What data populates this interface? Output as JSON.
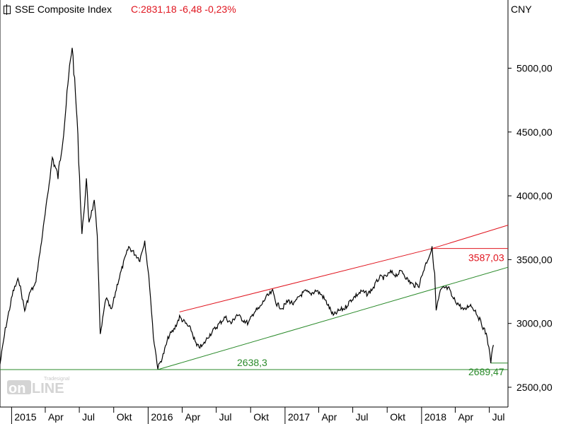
{
  "header": {
    "title": "SSE Composite Index",
    "quote": "C:2831,18 -6,48 -0,23%"
  },
  "currency": "CNY",
  "watermark": "Tradesignal online",
  "colors": {
    "price": "#000000",
    "resistance": "#e0141e",
    "support": "#2a8a2a",
    "quote": "#e0141e"
  },
  "chart_data": {
    "type": "line",
    "title": "SSE Composite Index",
    "ylim": [
      2400,
      5400
    ],
    "y_ticks": [
      "2500,00",
      "3000,00",
      "3500,00",
      "4000,00",
      "4500,00",
      "5000,00"
    ],
    "x_ticks": [
      "2015",
      "Apr",
      "Jul",
      "Okt",
      "2016",
      "Apr",
      "Jul",
      "Okt",
      "2017",
      "Apr",
      "Jul",
      "Okt",
      "2018",
      "Apr",
      "Jul"
    ],
    "grid": false,
    "series": [
      {
        "name": "SSE Composite Index",
        "x": [
          "2014-12-01",
          "2014-12-15",
          "2015-01-05",
          "2015-01-20",
          "2015-02-05",
          "2015-02-20",
          "2015-03-05",
          "2015-03-20",
          "2015-04-05",
          "2015-04-20",
          "2015-05-05",
          "2015-05-20",
          "2015-06-05",
          "2015-06-12",
          "2015-06-25",
          "2015-07-08",
          "2015-07-20",
          "2015-07-27",
          "2015-08-10",
          "2015-08-18",
          "2015-08-26",
          "2015-09-10",
          "2015-09-25",
          "2015-10-10",
          "2015-10-25",
          "2015-11-10",
          "2015-11-25",
          "2015-12-10",
          "2015-12-23",
          "2016-01-05",
          "2016-01-15",
          "2016-01-27",
          "2016-02-10",
          "2016-02-25",
          "2016-03-10",
          "2016-03-25",
          "2016-04-10",
          "2016-04-25",
          "2016-05-10",
          "2016-05-25",
          "2016-06-10",
          "2016-06-25",
          "2016-07-10",
          "2016-07-25",
          "2016-08-10",
          "2016-08-25",
          "2016-09-10",
          "2016-09-25",
          "2016-10-10",
          "2016-10-25",
          "2016-11-10",
          "2016-11-29",
          "2016-12-10",
          "2016-12-25",
          "2017-01-10",
          "2017-01-25",
          "2017-02-10",
          "2017-02-25",
          "2017-03-10",
          "2017-03-25",
          "2017-04-10",
          "2017-04-25",
          "2017-05-10",
          "2017-05-25",
          "2017-06-10",
          "2017-06-25",
          "2017-07-10",
          "2017-07-25",
          "2017-08-10",
          "2017-08-25",
          "2017-09-10",
          "2017-09-25",
          "2017-10-10",
          "2017-10-25",
          "2017-11-10",
          "2017-11-25",
          "2017-12-10",
          "2017-12-25",
          "2018-01-10",
          "2018-01-29",
          "2018-02-05",
          "2018-02-09",
          "2018-02-20",
          "2018-03-01",
          "2018-03-15",
          "2018-03-25",
          "2018-04-10",
          "2018-04-25",
          "2018-05-10",
          "2018-05-25",
          "2018-06-10",
          "2018-06-25",
          "2018-07-05",
          "2018-07-12"
        ],
        "y": [
          2680,
          2950,
          3250,
          3350,
          3100,
          3250,
          3300,
          3600,
          3950,
          4300,
          4150,
          4500,
          5000,
          5178,
          4600,
          3700,
          4100,
          3800,
          3950,
          3700,
          2900,
          3200,
          3100,
          3300,
          3450,
          3600,
          3550,
          3500,
          3650,
          3300,
          2900,
          2650,
          2750,
          2900,
          2950,
          3050,
          3000,
          2950,
          2820,
          2820,
          2900,
          2950,
          3000,
          3050,
          3000,
          3070,
          3030,
          3000,
          3090,
          3120,
          3200,
          3250,
          3150,
          3120,
          3180,
          3150,
          3220,
          3250,
          3230,
          3260,
          3220,
          3150,
          3060,
          3100,
          3120,
          3180,
          3220,
          3250,
          3230,
          3280,
          3360,
          3360,
          3400,
          3380,
          3410,
          3340,
          3300,
          3300,
          3450,
          3587,
          3380,
          3100,
          3250,
          3280,
          3270,
          3200,
          3150,
          3100,
          3150,
          3100,
          3000,
          2900,
          2700,
          2831
        ]
      }
    ],
    "annotations": [
      {
        "label": "3587,03",
        "color": "#e0141e",
        "y": 3587.03
      },
      {
        "label": "2638,3",
        "color": "#2a8a2a",
        "y": 2638.3
      },
      {
        "label": "2689,47",
        "color": "#2a8a2a",
        "y": 2689.47
      }
    ],
    "trendlines": [
      {
        "name": "resistance",
        "color": "#e0141e",
        "x": [
          "2016-03-25",
          "2018-01-29",
          "2018-08-20"
        ],
        "y": [
          3090,
          3587,
          3770
        ]
      },
      {
        "name": "support",
        "color": "#2a8a2a",
        "x": [
          "2016-01-27",
          "2018-08-20"
        ],
        "y": [
          2638.3,
          3440
        ]
      }
    ]
  }
}
